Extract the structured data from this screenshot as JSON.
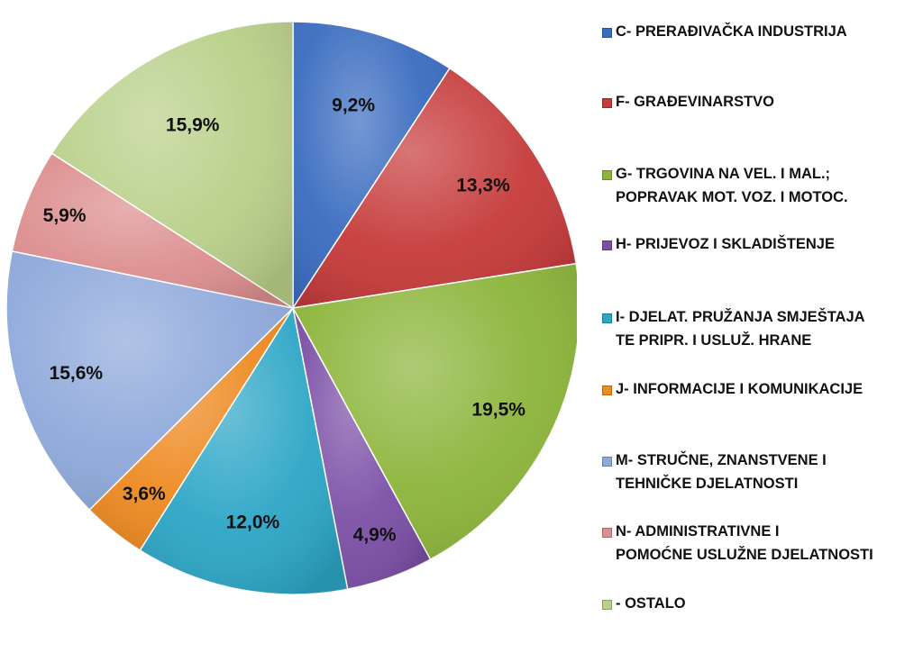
{
  "chart_data": {
    "type": "pie",
    "title": "",
    "slices": [
      {
        "legend_lines": [
          "C- PRERAĐIVAČKA INDUSTRIJA"
        ],
        "value": 9.2,
        "label": "9,2%",
        "color": "#3a6cc0"
      },
      {
        "legend_lines": [
          "F- GRAĐEVINARSTVO"
        ],
        "value": 13.3,
        "label": "13,3%",
        "color": "#c63a3a"
      },
      {
        "legend_lines": [
          "G- TRGOVINA NA VEL. I MAL.;",
          "POPRAVAK MOT. VOZ. I MOTOC."
        ],
        "value": 19.5,
        "label": "19,5%",
        "color": "#8cb43a"
      },
      {
        "legend_lines": [
          "H- PRIJEVOZ I SKLADIŠTENJE"
        ],
        "value": 4.9,
        "label": "4,9%",
        "color": "#7b4fa6"
      },
      {
        "legend_lines": [
          "I- DJELAT. PRUŽANJA SMJEŠTAJA",
          "TE PRIPR. I USLUŽ. HRANE"
        ],
        "value": 12.0,
        "label": "12,0%",
        "color": "#2ca6c6"
      },
      {
        "legend_lines": [
          "J- INFORMACIJE I KOMUNIKACIJE"
        ],
        "value": 3.6,
        "label": "3,6%",
        "color": "#ee8a22"
      },
      {
        "legend_lines": [
          "M- STRUČNE, ZNANSTVENE I",
          "TEHNIČKE DJELATNOSTI"
        ],
        "value": 15.6,
        "label": "15,6%",
        "color": "#8fa9db"
      },
      {
        "legend_lines": [
          "N- ADMINISTRATIVNE I",
          "POMOĆNE USLUŽNE DJELATNOSTI"
        ],
        "value": 5.9,
        "label": "5,9%",
        "color": "#dc8e8e"
      },
      {
        "legend_lines": [
          "  - OSTALO"
        ],
        "value": 15.9,
        "label": "15,9%",
        "color": "#b9d08a"
      }
    ],
    "start_angle": "12 o'clock, clockwise",
    "legend_position": "right"
  }
}
